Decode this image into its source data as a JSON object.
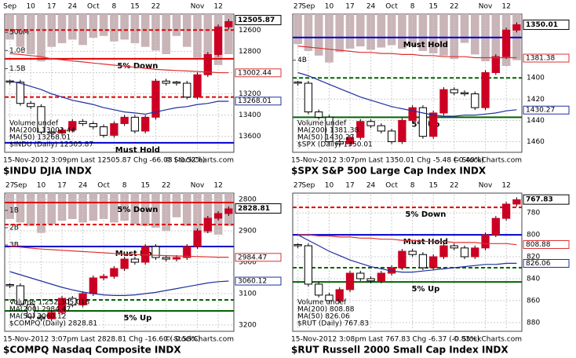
{
  "chart_data": [
    {
      "type": "stock",
      "title": "$INDU DJIA INDX",
      "info": "15-Nov-2012 3:09pm   Last 12505.87   Chg -66.08 (-0.52%)",
      "credit": "© StockCharts.com",
      "legend": [
        "$INDU (Daily) 12505.87",
        "MA(50) 13268.01",
        "MA(200) 13002.44",
        "Volume undef"
      ],
      "categories": [
        "Sep",
        null,
        "10",
        null,
        "17",
        null,
        "24",
        null,
        "Oct",
        null,
        "8",
        null,
        "15",
        null,
        "22",
        null,
        null,
        null,
        "Nov",
        null,
        "12",
        null
      ],
      "ylim": [
        12450,
        13750
      ],
      "yticks": [
        12600,
        12800,
        13000,
        13200,
        13400,
        13600
      ],
      "last_value": 12505.87,
      "y2lim": [
        0,
        3800000000
      ],
      "y2ticks": [
        {
          "value": 500000000,
          "label": "500M"
        },
        {
          "value": 1000000000,
          "label": "1.0B"
        },
        {
          "value": 1500000000,
          "label": "1.5B"
        }
      ],
      "series": [
        {
          "name": "price",
          "color": "#cc0022",
          "values": [
            13090,
            13290,
            13320,
            13560,
            13570,
            13540,
            13460,
            13480,
            13510,
            13590,
            13480,
            13420,
            13550,
            13420,
            13080,
            13100,
            13100,
            13230,
            13020,
            12830,
            12570,
            12520
          ]
        },
        {
          "name": "MA(50)",
          "color": "#1f2fa0",
          "end_value": 13268.01,
          "values": [
            13080,
            13100,
            13130,
            13160,
            13200,
            13230,
            13260,
            13280,
            13300,
            13330,
            13350,
            13370,
            13380,
            13390,
            13370,
            13350,
            13330,
            13320,
            13300,
            13290,
            13270,
            13270
          ]
        },
        {
          "name": "MA(200)",
          "color": "#e03030",
          "end_value": 13002.44,
          "values": [
            12820,
            12830,
            12840,
            12850,
            12870,
            12880,
            12890,
            12900,
            12910,
            12920,
            12930,
            12940,
            12950,
            12960,
            12970,
            12975,
            12980,
            12985,
            12990,
            12995,
            13000,
            13002
          ]
        },
        {
          "name": "Volume",
          "color": "#c9b4b8",
          "axis": "y2",
          "values": [
            700000000,
            900000000,
            1100000000,
            1300000000,
            900000000,
            800000000,
            700000000,
            850000000,
            650000000,
            600000000,
            750000000,
            700000000,
            800000000,
            900000000,
            1000000000,
            1100000000,
            600000000,
            900000000,
            1200000000,
            1300000000,
            1400000000,
            1100000000
          ]
        }
      ],
      "levels": [
        {
          "value": 12870,
          "color": "#e00000",
          "style": "solid",
          "label": "5% Down"
        },
        {
          "value": 12600,
          "color": "#e00000",
          "style": "dashed"
        },
        {
          "value": 13230,
          "color": "#e00000",
          "style": "dashed"
        },
        {
          "value": 13660,
          "color": "#0000cc",
          "style": "solid",
          "label": "Must Hold"
        }
      ]
    },
    {
      "type": "stock",
      "title": "$SPX S&P 500 Large Cap Index INDX",
      "info": "15-Nov-2012 3:07pm   Last 1350.01   Chg -5.48 (-0.40%)",
      "credit": "© StockCharts.com",
      "legend": [
        "$SPX (Daily) 1350.01",
        "MA(50) 1430.27",
        "MA(200) 1381.38",
        "Volume undef"
      ],
      "categories": [
        "27",
        "Sep",
        null,
        "10",
        null,
        "17",
        null,
        "24",
        null,
        "Oct",
        null,
        "8",
        null,
        "15",
        null,
        "22",
        null,
        null,
        "Nov",
        null,
        "12",
        null
      ],
      "ylim": [
        1340,
        1470
      ],
      "yticks": [
        1400,
        1420,
        1440,
        1460
      ],
      "last_value": 1350.01,
      "y2lim": [
        0,
        12000000000
      ],
      "y2ticks": [
        {
          "value": 4000000000,
          "label": "4B"
        }
      ],
      "series": [
        {
          "name": "price",
          "color": "#cc0022",
          "values": [
            1405,
            1432,
            1437,
            1460,
            1462,
            1456,
            1441,
            1445,
            1450,
            1460,
            1440,
            1428,
            1455,
            1433,
            1411,
            1414,
            1415,
            1428,
            1395,
            1380,
            1355,
            1350
          ]
        },
        {
          "name": "MA(50)",
          "color": "#1f2fa0",
          "end_value": 1430.27,
          "values": [
            1395,
            1398,
            1402,
            1406,
            1410,
            1414,
            1418,
            1421,
            1424,
            1427,
            1429,
            1431,
            1433,
            1435,
            1436,
            1436,
            1435,
            1435,
            1434,
            1433,
            1431,
            1430
          ]
        },
        {
          "name": "MA(200)",
          "color": "#e03030",
          "end_value": 1381.38,
          "values": [
            1370,
            1371,
            1372,
            1373,
            1374,
            1375,
            1376,
            1376,
            1377,
            1377,
            1378,
            1378,
            1379,
            1379,
            1380,
            1380,
            1380,
            1381,
            1381,
            1381,
            1381,
            1381
          ]
        },
        {
          "name": "Volume",
          "color": "#c9b4b8",
          "axis": "y2",
          "values": [
            2600000000,
            3200000000,
            3600000000,
            4200000000,
            3300000000,
            3000000000,
            2800000000,
            3100000000,
            2900000000,
            2700000000,
            3000000000,
            2800000000,
            3200000000,
            3400000000,
            3600000000,
            3900000000,
            2500000000,
            3500000000,
            4100000000,
            4300000000,
            4500000000,
            4000000000
          ]
        }
      ],
      "levels": [
        {
          "value": 1362,
          "color": "#0000cc",
          "style": "solid",
          "label": "Must Hold"
        },
        {
          "value": 1400,
          "color": "#006400",
          "style": "dashed"
        },
        {
          "value": 1437,
          "color": "#006400",
          "style": "solid",
          "label": "5% Up"
        }
      ]
    },
    {
      "type": "stock",
      "title": "$COMPQ Nasdaq Composite INDX",
      "info": "15-Nov-2012 3:07pm   Last 2828.81   Chg -16.60 (-0.58%)",
      "credit": "© StockCharts.com",
      "legend": [
        "$COMPQ (Daily) 2828.81",
        "MA(50) 3060.12",
        "MA(200) 2984.47",
        "Volume 1,252,305,018"
      ],
      "categories": [
        "27",
        "Sep",
        null,
        "10",
        null,
        "17",
        null,
        "24",
        null,
        "Oct",
        null,
        "8",
        null,
        "15",
        null,
        "22",
        null,
        null,
        "Nov",
        null,
        "12",
        null
      ],
      "ylim": [
        2780,
        3220
      ],
      "yticks": [
        2800,
        2900,
        3000,
        3100,
        3200
      ],
      "last_value": 2828.81,
      "y2lim": [
        0,
        8000000000
      ],
      "y2ticks": [
        {
          "value": 1000000000,
          "label": "1B"
        },
        {
          "value": 2000000000,
          "label": "2B"
        },
        {
          "value": 3000000000,
          "label": "3B"
        }
      ],
      "series": [
        {
          "name": "price",
          "color": "#cc0022",
          "values": [
            3075,
            3135,
            3175,
            3180,
            3160,
            3115,
            3136,
            3100,
            3050,
            3045,
            3020,
            2990,
            3000,
            2950,
            2985,
            2990,
            2985,
            2950,
            2900,
            2860,
            2845,
            2830
          ]
        },
        {
          "name": "MA(50)",
          "color": "#1f2fa0",
          "end_value": 3060.12,
          "values": [
            3030,
            3040,
            3050,
            3060,
            3070,
            3080,
            3088,
            3095,
            3100,
            3104,
            3106,
            3106,
            3104,
            3100,
            3096,
            3090,
            3084,
            3078,
            3072,
            3066,
            3062,
            3060
          ]
        },
        {
          "name": "MA(200)",
          "color": "#e03030",
          "end_value": 2984.47,
          "values": [
            2950,
            2952,
            2955,
            2958,
            2960,
            2962,
            2964,
            2966,
            2968,
            2970,
            2972,
            2974,
            2975,
            2977,
            2978,
            2979,
            2980,
            2981,
            2982,
            2983,
            2984,
            2984
          ]
        },
        {
          "name": "Volume",
          "color": "#c9b4b8",
          "axis": "y2",
          "values": [
            1500000000,
            1700000000,
            1900000000,
            2300000000,
            1800000000,
            1600000000,
            1500000000,
            1700000000,
            1600000000,
            1500000000,
            1700000000,
            1600000000,
            1800000000,
            1900000000,
            2000000000,
            2200000000,
            1400000000,
            1900000000,
            2200000000,
            2300000000,
            2400000000,
            1900000000
          ]
        }
      ],
      "levels": [
        {
          "value": 2810,
          "color": "#e00000",
          "style": "solid",
          "label": "5% Down"
        },
        {
          "value": 2880,
          "color": "#e00000",
          "style": "dashed"
        },
        {
          "value": 2950,
          "color": "#0000cc",
          "style": "solid",
          "label": "Must Hold"
        },
        {
          "value": 3120,
          "color": "#006400",
          "style": "dashed"
        },
        {
          "value": 3155,
          "color": "#006400",
          "style": "solid",
          "label": "5% Up"
        }
      ]
    },
    {
      "type": "stock",
      "title": "$RUT Russell 2000 Small Cap Index INDX",
      "info": "15-Nov-2012 3:08pm   Last 767.83   Chg -6.37 (-0.83%)",
      "credit": "© StockCharts.com",
      "legend": [
        "$RUT (Daily) 767.83",
        "MA(50) 826.06",
        "MA(200) 808.88",
        "Volume undef"
      ],
      "categories": [
        "27",
        "Sep",
        null,
        "10",
        null,
        "17",
        null,
        "24",
        null,
        "Oct",
        null,
        "8",
        null,
        "15",
        null,
        "22",
        null,
        null,
        "Nov",
        null,
        "12",
        null
      ],
      "ylim": [
        762,
        888
      ],
      "yticks": [
        780,
        800,
        820,
        840,
        860,
        880
      ],
      "last_value": 767.83,
      "series": [
        {
          "name": "price",
          "color": "#cc0022",
          "values": [
            810,
            845,
            855,
            860,
            850,
            835,
            840,
            842,
            835,
            830,
            815,
            818,
            830,
            820,
            810,
            812,
            820,
            812,
            800,
            785,
            772,
            768
          ]
        },
        {
          "name": "MA(50)",
          "color": "#1f2fa0",
          "end_value": 826.06,
          "values": [
            800,
            805,
            810,
            815,
            819,
            823,
            826,
            829,
            831,
            833,
            834,
            834,
            833,
            832,
            831,
            830,
            829,
            828,
            827,
            827,
            826,
            826
          ]
        },
        {
          "name": "MA(200)",
          "color": "#e03030",
          "end_value": 808.88,
          "values": [
            800,
            800,
            801,
            801,
            802,
            802,
            803,
            803,
            804,
            804,
            805,
            805,
            806,
            806,
            806,
            807,
            807,
            807,
            808,
            808,
            808,
            809
          ]
        }
      ],
      "levels": [
        {
          "value": 775,
          "color": "#e00000",
          "style": "dashed",
          "label": "5% Down"
        },
        {
          "value": 800,
          "color": "#0000cc",
          "style": "solid",
          "label": "Must Hold"
        },
        {
          "value": 830,
          "color": "#006400",
          "style": "dashed"
        },
        {
          "value": 843,
          "color": "#006400",
          "style": "solid",
          "label": "5% Up"
        }
      ]
    }
  ]
}
